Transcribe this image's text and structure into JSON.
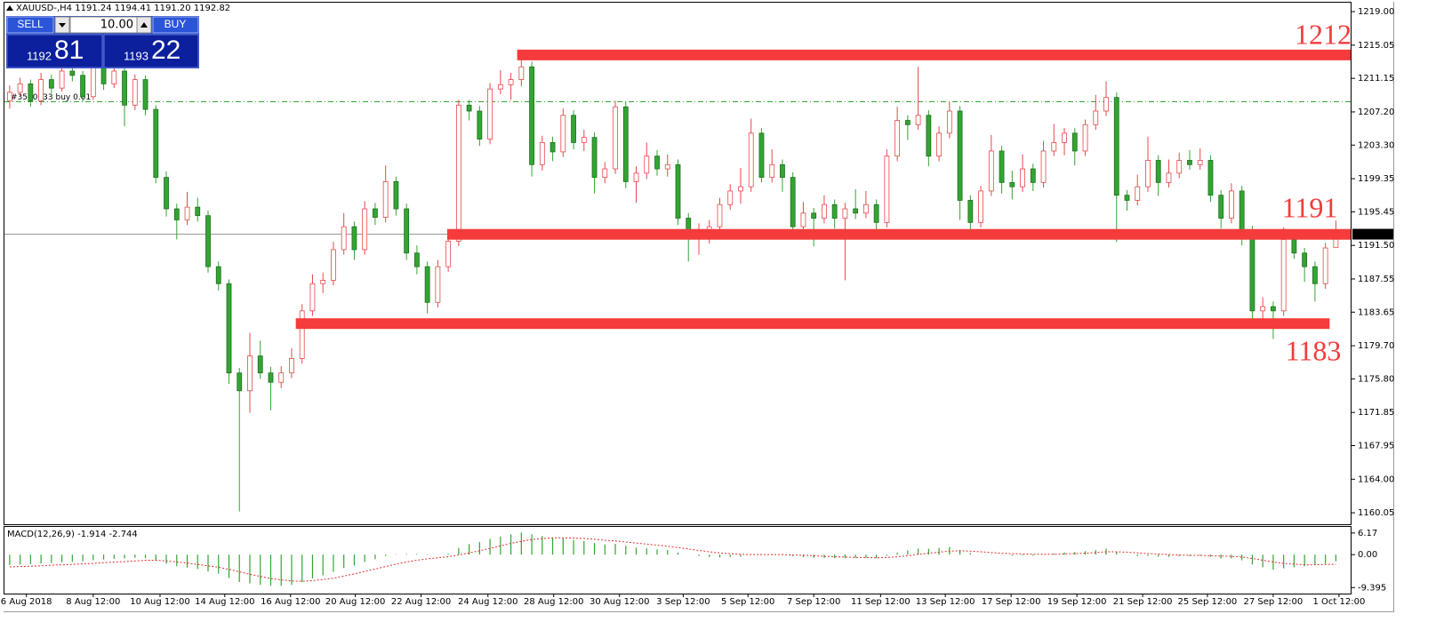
{
  "header": {
    "text": "XAUUSD-,H4  1191.24 1194.41 1191.20 1192.82"
  },
  "trade_panel": {
    "sell": "SELL",
    "buy": "BUY",
    "volume": "10.00",
    "bid_figure": "1192",
    "bid_pips": "81",
    "ask_figure": "1193",
    "ask_pips": "22"
  },
  "chart_data": {
    "type": "candlestick",
    "up_color": "#e8474a",
    "down_color": "#33a532",
    "xlim": [
      -0.5,
      128.5
    ],
    "xticks": [
      {
        "value": 1.6,
        "label": "6 Aug 2018"
      },
      {
        "value": 8.0,
        "label": "8 Aug 12:00"
      },
      {
        "value": 14.4,
        "label": "10 Aug 12:00"
      },
      {
        "value": 20.6,
        "label": "14 Aug 12:00"
      },
      {
        "value": 26.9,
        "label": "16 Aug 12:00"
      },
      {
        "value": 33.1,
        "label": "20 Aug 12:00"
      },
      {
        "value": 39.4,
        "label": "22 Aug 12:00"
      },
      {
        "value": 45.8,
        "label": "24 Aug 12:00"
      },
      {
        "value": 52.1,
        "label": "28 Aug 12:00"
      },
      {
        "value": 58.4,
        "label": "30 Aug 12:00"
      },
      {
        "value": 64.5,
        "label": "3 Sep 12:00"
      },
      {
        "value": 70.7,
        "label": "5 Sep 12:00"
      },
      {
        "value": 77.0,
        "label": "7 Sep 12:00"
      },
      {
        "value": 83.4,
        "label": "11 Sep 12:00"
      },
      {
        "value": 89.6,
        "label": "13 Sep 12:00"
      },
      {
        "value": 95.9,
        "label": "17 Sep 12:00"
      },
      {
        "value": 102.2,
        "label": "19 Sep 12:00"
      },
      {
        "value": 108.5,
        "label": "21 Sep 12:00"
      },
      {
        "value": 114.7,
        "label": "25 Sep 12:00"
      },
      {
        "value": 121.0,
        "label": "27 Sep 12:00"
      },
      {
        "value": 127.3,
        "label": "1 Oct 12:00"
      }
    ],
    "ylim": [
      1158.7,
      1220.05
    ],
    "yticks": [
      {
        "value": 1219,
        "label": "1219.00"
      },
      1215.05,
      1211.15,
      {
        "value": 1207.2,
        "label": "1207.20"
      },
      {
        "value": 1203.3,
        "label": "1203.30"
      },
      1199.35,
      1195.45,
      {
        "value": 1191.5,
        "label": "1191.50"
      },
      1187.55,
      1183.65,
      {
        "value": 1179.7,
        "label": "1179.70"
      },
      {
        "value": 1175.8,
        "label": "1175.80"
      },
      1171.85,
      1167.95,
      {
        "value": 1164,
        "label": "1164.00"
      },
      1160.05
    ],
    "order_line": {
      "label": "#3510633 buy 0.01",
      "value": 1208.4,
      "color": "#33a532"
    },
    "levels": [
      {
        "value": 1213.9,
        "start": 48.6,
        "end": 128.5,
        "color": "#f53b3b"
      },
      {
        "value": 1192.8,
        "start": 41.9,
        "end": 128.5,
        "color": "#f53b3b"
      },
      {
        "value": 1182.3,
        "start": 27.4,
        "end": 126.4,
        "color": "#f53b3b"
      }
    ],
    "annotations": [
      {
        "text": "1212"
      },
      {
        "text": "1191"
      },
      {
        "text": "1183"
      }
    ],
    "candles": [
      [
        1208.5,
        1210.3,
        1207.6,
        1209.5
      ],
      [
        1209.5,
        1211.2,
        1209,
        1210.5
      ],
      [
        1210.5,
        1211,
        1207.8,
        1208.5
      ],
      [
        1208.5,
        1211.8,
        1208,
        1211
      ],
      [
        1211,
        1211.6,
        1209.4,
        1210
      ],
      [
        1210,
        1212.7,
        1209.6,
        1212
      ],
      [
        1212,
        1212.6,
        1210.8,
        1211.5
      ],
      [
        1211.5,
        1212,
        1208.4,
        1209
      ],
      [
        1209,
        1213.2,
        1208.6,
        1212.5
      ],
      [
        1212.5,
        1213,
        1209.8,
        1210.5
      ],
      [
        1210.5,
        1212.8,
        1210,
        1212
      ],
      [
        1212,
        1212.5,
        1205.5,
        1208
      ],
      [
        1208,
        1211.6,
        1207.4,
        1211
      ],
      [
        1211,
        1211.5,
        1206.8,
        1207.5
      ],
      [
        1207.5,
        1208,
        1198.8,
        1199.5
      ],
      [
        1199.5,
        1200.2,
        1194.9,
        1195.8
      ],
      [
        1195.8,
        1196.4,
        1192.2,
        1194.5
      ],
      [
        1194.5,
        1197.8,
        1193.9,
        1196
      ],
      [
        1196,
        1197.1,
        1194.3,
        1195
      ],
      [
        1195,
        1195.6,
        1188.3,
        1189
      ],
      [
        1189,
        1189.6,
        1186.2,
        1187
      ],
      [
        1187,
        1187.5,
        1175.2,
        1176.5
      ],
      [
        1176.5,
        1177.1,
        1160.2,
        1174.4
      ],
      [
        1174.4,
        1181.2,
        1171.8,
        1178.5
      ],
      [
        1178.5,
        1180.3,
        1175.8,
        1176.5
      ],
      [
        1176.5,
        1177.2,
        1172.1,
        1175.4
      ],
      [
        1175.4,
        1177.3,
        1174.7,
        1176.5
      ],
      [
        1176.5,
        1179.4,
        1175.9,
        1178.2
      ],
      [
        1178.2,
        1184.6,
        1177.6,
        1183.8
      ],
      [
        1183.8,
        1188.1,
        1183.2,
        1187
      ],
      [
        1187,
        1188.3,
        1185.9,
        1187.4
      ],
      [
        1187.4,
        1191.9,
        1186.8,
        1191
      ],
      [
        1191,
        1195.3,
        1190.4,
        1193.7
      ],
      [
        1193.7,
        1194.3,
        1189.8,
        1191
      ],
      [
        1191,
        1196.7,
        1190.4,
        1195.8
      ],
      [
        1195.8,
        1196.5,
        1193.9,
        1194.8
      ],
      [
        1194.8,
        1200.9,
        1194.2,
        1199
      ],
      [
        1199,
        1199.6,
        1195,
        1195.8
      ],
      [
        1195.8,
        1196.4,
        1189.8,
        1190.6
      ],
      [
        1190.6,
        1191.5,
        1188.1,
        1189
      ],
      [
        1189,
        1189.6,
        1183.5,
        1184.8
      ],
      [
        1184.8,
        1189.8,
        1184.2,
        1189
      ],
      [
        1189,
        1192.8,
        1188.4,
        1192
      ],
      [
        1192,
        1208.6,
        1191.4,
        1208
      ],
      [
        1208,
        1208.6,
        1206.2,
        1207.3
      ],
      [
        1207.3,
        1207.9,
        1203.2,
        1204
      ],
      [
        1204,
        1210.6,
        1203.4,
        1209.9
      ],
      [
        1209.9,
        1212.1,
        1209.3,
        1210.4
      ],
      [
        1210.4,
        1211.8,
        1208.6,
        1211
      ],
      [
        1211,
        1213.6,
        1210.2,
        1212.5
      ],
      [
        1212.5,
        1213.1,
        1199.6,
        1201
      ],
      [
        1201,
        1204.4,
        1200.3,
        1203.6
      ],
      [
        1203.6,
        1204.3,
        1201.4,
        1202.5
      ],
      [
        1202.5,
        1207.6,
        1201.9,
        1206.8
      ],
      [
        1206.8,
        1207.4,
        1202.8,
        1203.6
      ],
      [
        1203.6,
        1205.1,
        1202.6,
        1204.2
      ],
      [
        1204.2,
        1204.8,
        1197.6,
        1199.5
      ],
      [
        1199.5,
        1201.3,
        1198.8,
        1200.5
      ],
      [
        1200.5,
        1208.5,
        1199.9,
        1207.8
      ],
      [
        1207.8,
        1208.4,
        1198.2,
        1199
      ],
      [
        1199,
        1200.8,
        1196.5,
        1200
      ],
      [
        1200,
        1203.6,
        1199.3,
        1202
      ],
      [
        1202,
        1202.7,
        1199.7,
        1200.5
      ],
      [
        1200.5,
        1202.2,
        1199.6,
        1201
      ],
      [
        1201,
        1201.6,
        1193.9,
        1194.7
      ],
      [
        1194.7,
        1195.3,
        1189.6,
        1192.7
      ],
      [
        1192.7,
        1194.1,
        1190.4,
        1193.2
      ],
      [
        1193.2,
        1194.5,
        1191.7,
        1193.7
      ],
      [
        1193.7,
        1197.1,
        1193.1,
        1196.3
      ],
      [
        1196.3,
        1198.7,
        1195.7,
        1197.9
      ],
      [
        1197.9,
        1200.6,
        1196.4,
        1198.4
      ],
      [
        1198.4,
        1206.4,
        1197.8,
        1204.7
      ],
      [
        1204.7,
        1205.3,
        1198.9,
        1199.5
      ],
      [
        1199.5,
        1202.8,
        1198.9,
        1201
      ],
      [
        1201,
        1201.6,
        1197.8,
        1199.5
      ],
      [
        1199.5,
        1200.1,
        1192.4,
        1193.7
      ],
      [
        1193.7,
        1196.6,
        1193.1,
        1195.3
      ],
      [
        1195.3,
        1195.9,
        1191.4,
        1194.7
      ],
      [
        1194.7,
        1197.4,
        1194.1,
        1196.3
      ],
      [
        1196.3,
        1196.9,
        1193.5,
        1194.7
      ],
      [
        1194.7,
        1196.5,
        1187.4,
        1195.8
      ],
      [
        1195.8,
        1198.1,
        1194.6,
        1195.3
      ],
      [
        1195.3,
        1197.9,
        1194.7,
        1196.3
      ],
      [
        1196.3,
        1196.9,
        1193,
        1194.2
      ],
      [
        1194.2,
        1202.8,
        1193.6,
        1202
      ],
      [
        1202,
        1207.8,
        1201.4,
        1206.2
      ],
      [
        1206.2,
        1206.8,
        1203.9,
        1205.7
      ],
      [
        1205.7,
        1212.5,
        1205.1,
        1206.8
      ],
      [
        1206.8,
        1207.4,
        1200.8,
        1202
      ],
      [
        1202,
        1205.5,
        1201.4,
        1204.7
      ],
      [
        1204.7,
        1208.4,
        1204.1,
        1207.3
      ],
      [
        1207.3,
        1207.9,
        1194.5,
        1196.8
      ],
      [
        1196.8,
        1197.4,
        1192.8,
        1194.2
      ],
      [
        1194.2,
        1198.5,
        1193.6,
        1197.9
      ],
      [
        1197.9,
        1204.5,
        1197.3,
        1202.6
      ],
      [
        1202.6,
        1203.2,
        1197.6,
        1198.9
      ],
      [
        1198.9,
        1200.3,
        1196.9,
        1198.4
      ],
      [
        1198.4,
        1202.2,
        1197.8,
        1200.5
      ],
      [
        1200.5,
        1201.1,
        1197.9,
        1198.9
      ],
      [
        1198.9,
        1203.8,
        1198.3,
        1202.6
      ],
      [
        1202.6,
        1205.8,
        1202,
        1203.6
      ],
      [
        1203.6,
        1205.3,
        1202.1,
        1204.7
      ],
      [
        1204.7,
        1205.3,
        1200.9,
        1202.6
      ],
      [
        1202.6,
        1206.3,
        1202,
        1205.7
      ],
      [
        1205.7,
        1209.2,
        1205.1,
        1207.3
      ],
      [
        1207.3,
        1210.8,
        1206.7,
        1208.9
      ],
      [
        1208.9,
        1209.5,
        1191.9,
        1197.4
      ],
      [
        1197.4,
        1198,
        1195.6,
        1196.8
      ],
      [
        1196.8,
        1199.8,
        1196.2,
        1198.4
      ],
      [
        1198.4,
        1204.3,
        1197.8,
        1201.5
      ],
      [
        1201.5,
        1202.1,
        1197.3,
        1198.9
      ],
      [
        1198.9,
        1201.6,
        1198.3,
        1200
      ],
      [
        1200,
        1202.4,
        1199.4,
        1201.5
      ],
      [
        1201.5,
        1202.7,
        1200.4,
        1201
      ],
      [
        1201,
        1202.9,
        1200.4,
        1201.5
      ],
      [
        1201.5,
        1202.1,
        1196.6,
        1197.4
      ],
      [
        1197.4,
        1198,
        1193.5,
        1194.7
      ],
      [
        1194.7,
        1198.8,
        1194.1,
        1197.9
      ],
      [
        1197.9,
        1198.5,
        1191.5,
        1193.2
      ],
      [
        1193.2,
        1193.8,
        1182.9,
        1183.8
      ],
      [
        1183.8,
        1185.4,
        1182.5,
        1184.3
      ],
      [
        1184.3,
        1184.9,
        1180.5,
        1183.8
      ],
      [
        1183.8,
        1193.6,
        1183.2,
        1192.2
      ],
      [
        1192.2,
        1192.8,
        1189.9,
        1190.6
      ],
      [
        1190.6,
        1191.2,
        1187.2,
        1189
      ],
      [
        1189,
        1189.6,
        1184.9,
        1187
      ],
      [
        1187,
        1191.8,
        1186.4,
        1191.2
      ],
      [
        1191.24,
        1194.41,
        1191.2,
        1192.82
      ]
    ],
    "macd": {
      "label": "MACD(12,26,9) -1.914 -2.744",
      "color": "#33a532",
      "signal_color": "#e03030",
      "ylim": [
        -11.1,
        7.9
      ],
      "yticks": [
        6.17,
        {
          "value": 0,
          "label": "0.00"
        },
        -9.395
      ],
      "main": [
        -3.0,
        -2.8,
        -2.7,
        -2.5,
        -2.4,
        -2.2,
        -2.0,
        -1.9,
        -1.6,
        -1.4,
        -1.2,
        -1.1,
        -0.9,
        -1.0,
        -1.8,
        -2.6,
        -3.3,
        -3.7,
        -4.1,
        -4.8,
        -5.4,
        -6.7,
        -7.8,
        -8.2,
        -8.6,
        -8.9,
        -8.9,
        -8.6,
        -7.8,
        -6.8,
        -5.9,
        -4.9,
        -3.8,
        -3.1,
        -2.1,
        -1.3,
        -0.4,
        0.1,
        0.2,
        0.2,
        -0.1,
        0.0,
        0.3,
        1.9,
        3.0,
        3.6,
        4.5,
        5.2,
        5.8,
        6.3,
        5.8,
        5.3,
        4.8,
        4.6,
        4.2,
        3.9,
        3.3,
        2.9,
        3.1,
        2.5,
        2.0,
        1.8,
        1.5,
        1.3,
        0.6,
        0.0,
        -0.4,
        -0.7,
        -0.8,
        -0.7,
        -0.6,
        0.1,
        0.1,
        0.2,
        0.1,
        -0.4,
        -0.7,
        -0.9,
        -0.9,
        -1.0,
        -1.0,
        -1.0,
        -0.9,
        -1.0,
        -0.3,
        0.6,
        1.2,
        1.7,
        1.7,
        1.9,
        2.2,
        1.3,
        0.4,
        0.0,
        0.1,
        -0.1,
        -0.3,
        -0.2,
        -0.3,
        0.0,
        0.3,
        0.6,
        0.7,
        1.0,
        1.3,
        1.7,
        0.8,
        0.0,
        -0.4,
        -0.4,
        -0.6,
        -0.6,
        -0.4,
        -0.4,
        -0.3,
        -0.6,
        -1.1,
        -1.1,
        -1.6,
        -2.8,
        -3.6,
        -4.3,
        -3.9,
        -3.6,
        -3.3,
        -3.0,
        -2.6,
        -1.914
      ],
      "signal": [
        -3.5,
        -3.4,
        -3.3,
        -3.2,
        -3.0,
        -2.9,
        -2.8,
        -2.6,
        -2.5,
        -2.3,
        -2.1,
        -2.0,
        -1.8,
        -1.6,
        -1.6,
        -1.8,
        -2.1,
        -2.4,
        -2.8,
        -3.2,
        -3.6,
        -4.2,
        -4.9,
        -5.6,
        -6.2,
        -6.8,
        -7.2,
        -7.5,
        -7.6,
        -7.4,
        -7.1,
        -6.7,
        -6.1,
        -5.5,
        -4.8,
        -4.1,
        -3.4,
        -2.7,
        -2.1,
        -1.6,
        -1.2,
        -0.9,
        -0.6,
        -0.1,
        0.5,
        1.1,
        1.8,
        2.5,
        3.2,
        3.8,
        4.3,
        4.6,
        4.8,
        4.8,
        4.7,
        4.6,
        4.4,
        4.1,
        3.9,
        3.6,
        3.3,
        3.0,
        2.7,
        2.4,
        2.0,
        1.6,
        1.2,
        0.8,
        0.5,
        0.3,
        0.1,
        0.0,
        0.0,
        0.0,
        0.0,
        -0.1,
        -0.2,
        -0.3,
        -0.5,
        -0.6,
        -0.7,
        -0.8,
        -0.8,
        -0.9,
        -0.8,
        -0.6,
        -0.3,
        0.1,
        0.4,
        0.7,
        1.0,
        1.1,
        1.0,
        0.8,
        0.6,
        0.4,
        0.3,
        0.2,
        0.1,
        0.1,
        0.1,
        0.2,
        0.3,
        0.4,
        0.6,
        0.8,
        0.8,
        0.7,
        0.5,
        0.3,
        0.2,
        0.0,
        -0.1,
        -0.2,
        -0.2,
        -0.3,
        -0.4,
        -0.5,
        -0.7,
        -1.1,
        -1.6,
        -2.1,
        -2.5,
        -2.7,
        -2.9,
        -2.9,
        -2.8,
        -2.744
      ]
    }
  }
}
